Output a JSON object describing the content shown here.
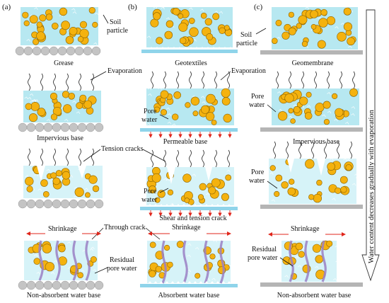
{
  "panels": {
    "a": "(a)",
    "b": "(b)",
    "c": "(c)"
  },
  "captions": {
    "r1": [
      "Grease",
      "Geotextiles",
      "Geomembrane"
    ],
    "r2": [
      "Impervious base",
      "Permeable base",
      "Impervious base"
    ],
    "r3": [
      "Shear and tension crack"
    ],
    "r4": [
      "Non-absorbent water base",
      "Absorbent water base",
      "Non-absorbent water base"
    ]
  },
  "labels": {
    "soil_particle_line1": "Soil",
    "soil_particle_line2": "particle",
    "evaporation": "Evaporation",
    "pore": "Pore",
    "water": "water",
    "tension_cracks": "Tension cracks",
    "through_crack": "Through crack",
    "shrinkage": "Shrinkage",
    "residual_line1": "Residual",
    "residual_line2": "pore water"
  },
  "side_arrow_label": "Water content decreases gradually with evaporation",
  "colors": {
    "water": "#b7e8f1",
    "water_light": "#d6f3f8",
    "particle": "#f4b20f",
    "particle_edge": "#8a6200",
    "grease": "#c4c4c4",
    "geotextile": "#8fd4ea",
    "geomembrane": "#b5b5b5",
    "crack_purple": "#9a7fc4",
    "arrow_red": "#e0261b"
  }
}
